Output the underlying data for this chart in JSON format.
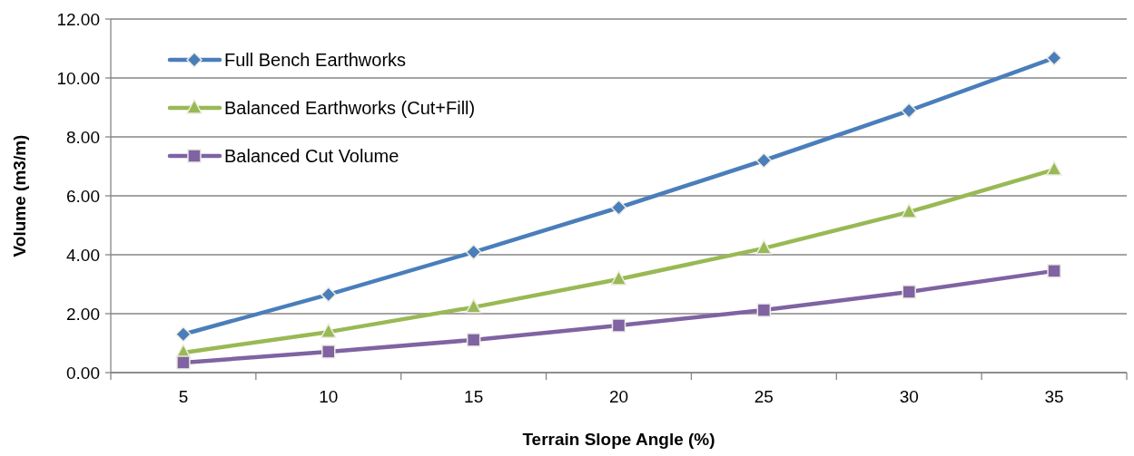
{
  "chart_data": {
    "type": "line",
    "xlabel": "Terrain Slope Angle (%)",
    "ylabel": "Volume (m3/m)",
    "categories": [
      "5",
      "10",
      "15",
      "20",
      "25",
      "30",
      "35"
    ],
    "series": [
      {
        "name": "Full Bench Earthworks",
        "color": "#4a7ebb",
        "marker": "diamond",
        "values": [
          1.3,
          2.65,
          4.09,
          5.6,
          7.2,
          8.89,
          10.68
        ]
      },
      {
        "name": "Balanced Earthworks (Cut+Fill)",
        "color": "#98b954",
        "marker": "triangle",
        "values": [
          0.68,
          1.38,
          2.22,
          3.17,
          4.22,
          5.45,
          6.89
        ]
      },
      {
        "name": "Balanced Cut Volume",
        "color": "#7f63a2",
        "marker": "square",
        "values": [
          0.34,
          0.71,
          1.11,
          1.6,
          2.12,
          2.74,
          3.45
        ]
      }
    ],
    "ylim": [
      0,
      12
    ],
    "yticks": [
      {
        "value": 0,
        "label": "0.00"
      },
      {
        "value": 2,
        "label": "2.00"
      },
      {
        "value": 4,
        "label": "4.00"
      },
      {
        "value": 6,
        "label": "6.00"
      },
      {
        "value": 8,
        "label": "8.00"
      },
      {
        "value": 10,
        "label": "10.00"
      },
      {
        "value": 12,
        "label": "12.00"
      }
    ],
    "grid": "y",
    "legend": "top left",
    "line_style": "solid"
  }
}
